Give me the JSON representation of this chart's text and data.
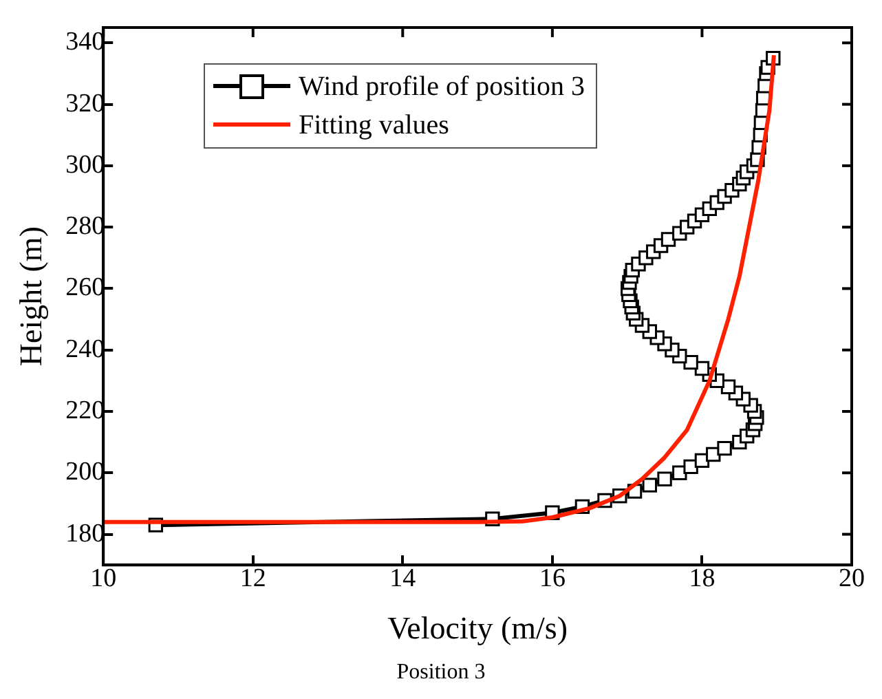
{
  "chart_data": {
    "type": "line",
    "xlabel": "Velocity (m/s)",
    "ylabel": "Height (m)",
    "annotations": [
      "Position 3"
    ],
    "xlim": [
      10,
      20
    ],
    "xticks": [
      10,
      12,
      14,
      16,
      18,
      20
    ],
    "ylim": [
      170,
      345
    ],
    "yticks": [
      180,
      200,
      220,
      240,
      260,
      280,
      300,
      320,
      340
    ],
    "grid": false,
    "legend": "top left",
    "line_style": "solid",
    "series": [
      {
        "name": "Wind profile of position 3",
        "color": "#000000",
        "marker": "square",
        "x": [
          10.7,
          15.2,
          16.0,
          16.4,
          16.7,
          16.9,
          17.1,
          17.3,
          17.5,
          17.7,
          17.85,
          18.0,
          18.15,
          18.3,
          18.5,
          18.6,
          18.68,
          18.71,
          18.73,
          18.7,
          18.65,
          18.55,
          18.45,
          18.35,
          18.2,
          18.1,
          18.0,
          17.85,
          17.7,
          17.6,
          17.5,
          17.4,
          17.3,
          17.2,
          17.12,
          17.08,
          17.06,
          17.04,
          17.02,
          17.01,
          17.03,
          17.05,
          17.07,
          17.15,
          17.25,
          17.35,
          17.45,
          17.55,
          17.7,
          17.8,
          17.9,
          18.0,
          18.1,
          18.2,
          18.3,
          18.4,
          18.5,
          18.55,
          18.6,
          18.69,
          18.74,
          18.76,
          18.78,
          18.79,
          18.81,
          18.82,
          18.84,
          18.86,
          18.88,
          18.95
        ],
        "values": [
          183,
          185,
          187,
          189,
          191,
          192.5,
          194,
          196,
          198,
          200,
          202,
          204,
          206,
          208,
          210,
          212,
          214,
          216,
          218,
          220,
          222,
          224,
          226,
          228,
          230,
          232,
          234,
          236,
          238,
          240,
          242,
          244,
          246,
          248,
          250,
          252,
          254,
          256,
          258,
          260,
          262,
          264,
          266,
          268,
          270,
          272,
          274,
          276,
          278,
          280,
          282,
          284,
          286,
          288,
          290,
          292,
          294,
          296,
          298,
          300,
          302,
          306,
          310,
          314,
          318,
          322,
          326,
          330,
          332,
          335
        ]
      },
      {
        "name": "Fitting values",
        "color": "#ff2000",
        "marker": "none",
        "x": [
          10,
          15,
          15.6,
          16,
          16.5,
          16.9,
          17.2,
          17.5,
          17.8,
          18.1,
          18.35,
          18.5,
          18.75,
          18.9,
          18.96
        ],
        "values": [
          184,
          184,
          184.2,
          185.5,
          188.5,
          192.5,
          198,
          205,
          214,
          230,
          250,
          264,
          295,
          318,
          336
        ]
      }
    ]
  }
}
